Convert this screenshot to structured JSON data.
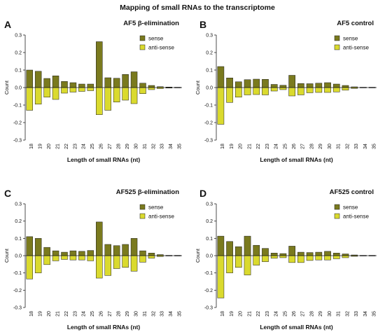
{
  "figure_title": "Mapping of small RNAs to the transcriptome",
  "colors": {
    "sense": "#7a7a1e",
    "antisense": "#dada2e",
    "edge": "#1a1a1a"
  },
  "chart_data": [
    {
      "type": "bar",
      "panel_letter": "A",
      "title": "AF5 β-elimination",
      "ylabel": "Count",
      "xlabel": "Length of small RNAs (nt)",
      "ylim": [
        -0.3,
        0.3
      ],
      "yticks": [
        "-0.3",
        "-0.2",
        "-0.1",
        "0.0",
        "0.1",
        "0.2",
        "0.3"
      ],
      "categories": [
        "18",
        "19",
        "20",
        "21",
        "22",
        "23",
        "24",
        "25",
        "26",
        "27",
        "28",
        "29",
        "30",
        "31",
        "32",
        "33",
        "34",
        "35"
      ],
      "legend": {
        "position": "top-right",
        "entries": [
          "sense",
          "anti-sense"
        ]
      },
      "series": [
        {
          "name": "sense",
          "values": [
            0.1,
            0.093,
            0.052,
            0.067,
            0.035,
            0.028,
            0.02,
            0.02,
            0.262,
            0.056,
            0.053,
            0.075,
            0.09,
            0.025,
            0.012,
            0.005,
            0.003,
            0.002
          ]
        },
        {
          "name": "anti-sense",
          "values": [
            -0.13,
            -0.095,
            -0.055,
            -0.068,
            -0.032,
            -0.026,
            -0.022,
            -0.018,
            -0.155,
            -0.13,
            -0.083,
            -0.072,
            -0.092,
            -0.035,
            -0.012,
            -0.006,
            -0.003,
            -0.002
          ]
        }
      ]
    },
    {
      "type": "bar",
      "panel_letter": "B",
      "title": "AF5 control",
      "ylabel": "Count",
      "xlabel": "Length of small RNAs (nt)",
      "ylim": [
        -0.3,
        0.3
      ],
      "yticks": [
        "-0.3",
        "-0.2",
        "-0.1",
        "0.0",
        "0.1",
        "0.2",
        "0.3"
      ],
      "categories": [
        "18",
        "19",
        "20",
        "21",
        "22",
        "23",
        "24",
        "25",
        "26",
        "27",
        "28",
        "29",
        "30",
        "31",
        "32",
        "33",
        "34",
        "35"
      ],
      "legend": {
        "position": "top-right",
        "entries": [
          "sense",
          "anti-sense"
        ]
      },
      "series": [
        {
          "name": "sense",
          "values": [
            0.12,
            0.055,
            0.033,
            0.045,
            0.048,
            0.047,
            0.018,
            0.013,
            0.07,
            0.023,
            0.022,
            0.025,
            0.028,
            0.02,
            0.012,
            0.004,
            0.002,
            0.002
          ]
        },
        {
          "name": "anti-sense",
          "values": [
            -0.21,
            -0.085,
            -0.055,
            -0.042,
            -0.04,
            -0.042,
            -0.02,
            -0.012,
            -0.048,
            -0.042,
            -0.03,
            -0.028,
            -0.028,
            -0.025,
            -0.015,
            -0.005,
            -0.002,
            -0.002
          ]
        }
      ]
    },
    {
      "type": "bar",
      "panel_letter": "C",
      "title": "AF525 β-elimination",
      "ylabel": "Count",
      "xlabel": "Length of small RNAs (nt)",
      "ylim": [
        -0.3,
        0.3
      ],
      "yticks": [
        "-0.3",
        "-0.2",
        "-0.1",
        "0.0",
        "0.1",
        "0.2",
        "0.3"
      ],
      "categories": [
        "18",
        "19",
        "20",
        "21",
        "22",
        "23",
        "24",
        "25",
        "26",
        "27",
        "28",
        "29",
        "30",
        "31",
        "32",
        "33",
        "34",
        "35"
      ],
      "legend": {
        "position": "top-right",
        "entries": [
          "sense",
          "anti-sense"
        ]
      },
      "series": [
        {
          "name": "sense",
          "values": [
            0.11,
            0.1,
            0.048,
            0.028,
            0.02,
            0.028,
            0.025,
            0.03,
            0.195,
            0.065,
            0.058,
            0.065,
            0.1,
            0.028,
            0.015,
            0.006,
            0.002,
            0.002
          ]
        },
        {
          "name": "anti-sense",
          "values": [
            -0.135,
            -0.1,
            -0.052,
            -0.03,
            -0.022,
            -0.025,
            -0.025,
            -0.03,
            -0.13,
            -0.115,
            -0.075,
            -0.068,
            -0.09,
            -0.038,
            -0.015,
            -0.005,
            -0.002,
            -0.002
          ]
        }
      ]
    },
    {
      "type": "bar",
      "panel_letter": "D",
      "title": "AF525 control",
      "ylabel": "Count",
      "xlabel": "Length of small RNAs (nt)",
      "ylim": [
        -0.3,
        0.3
      ],
      "yticks": [
        "-0.3",
        "-0.2",
        "-0.1",
        "0.0",
        "0.1",
        "0.2",
        "0.3"
      ],
      "categories": [
        "18",
        "19",
        "20",
        "21",
        "22",
        "23",
        "24",
        "25",
        "26",
        "27",
        "28",
        "29",
        "30",
        "31",
        "32",
        "33",
        "34",
        "35"
      ],
      "legend": {
        "position": "top-right",
        "entries": [
          "sense",
          "anti-sense"
        ]
      },
      "series": [
        {
          "name": "sense",
          "values": [
            0.113,
            0.082,
            0.052,
            0.113,
            0.06,
            0.042,
            0.015,
            0.012,
            0.055,
            0.02,
            0.018,
            0.02,
            0.025,
            0.015,
            0.01,
            0.004,
            0.002,
            0.002
          ]
        },
        {
          "name": "anti-sense",
          "values": [
            -0.245,
            -0.1,
            -0.068,
            -0.112,
            -0.055,
            -0.035,
            -0.015,
            -0.012,
            -0.04,
            -0.04,
            -0.028,
            -0.025,
            -0.025,
            -0.018,
            -0.012,
            -0.004,
            -0.002,
            -0.002
          ]
        }
      ]
    }
  ]
}
